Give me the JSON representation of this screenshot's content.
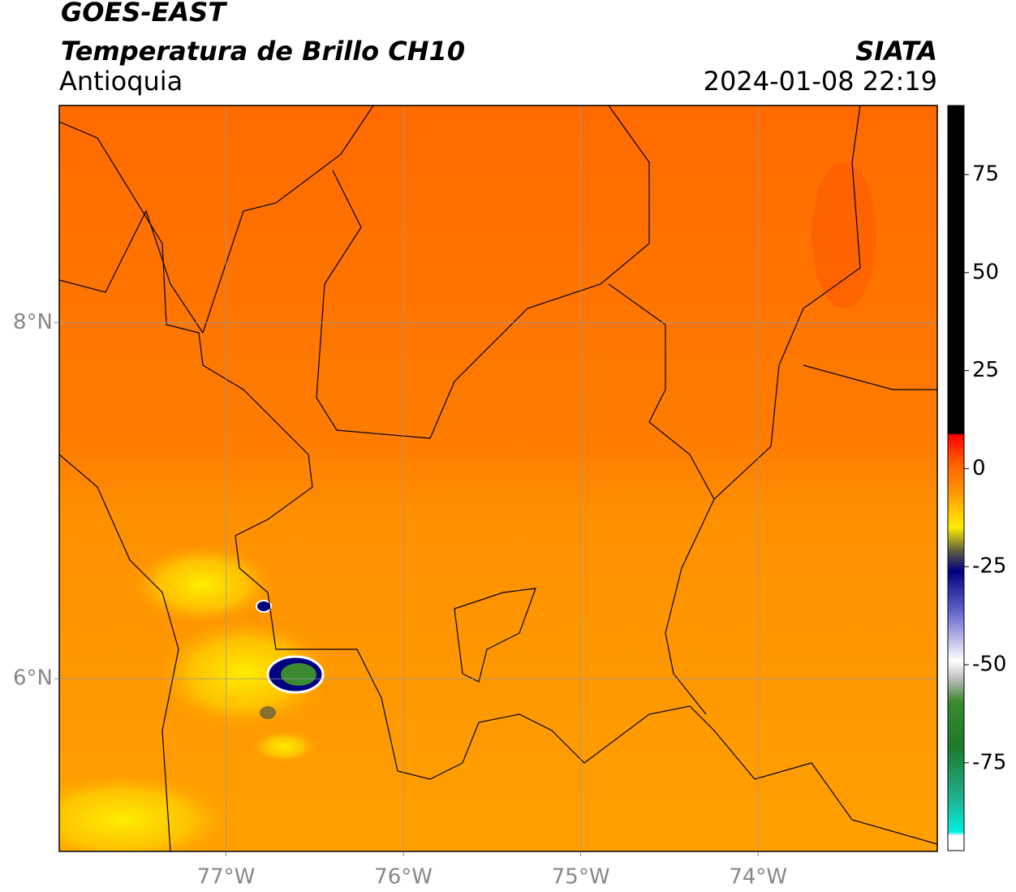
{
  "header": {
    "title": "GOES-EAST",
    "subtitle": "Temperatura de Brillo CH10",
    "region": "Antioquia",
    "source": "SIATA",
    "datetime": "2024-01-08 22:19"
  },
  "map": {
    "xlim": [
      -77.94,
      -72.99
    ],
    "ylim": [
      5.03,
      9.22
    ],
    "xticks": [
      {
        "value": -77,
        "label": "77°W"
      },
      {
        "value": -76,
        "label": "76°W"
      },
      {
        "value": -75,
        "label": "75°W"
      },
      {
        "value": -74,
        "label": "74°W"
      }
    ],
    "yticks": [
      {
        "value": 8,
        "label": "8°N"
      },
      {
        "value": 6,
        "label": "6°N"
      }
    ],
    "grid": true
  },
  "colorbar": {
    "lim": [
      -97.4,
      92.6
    ],
    "ticks": [
      75,
      50,
      25,
      0,
      -25,
      -50,
      -75
    ]
  }
}
